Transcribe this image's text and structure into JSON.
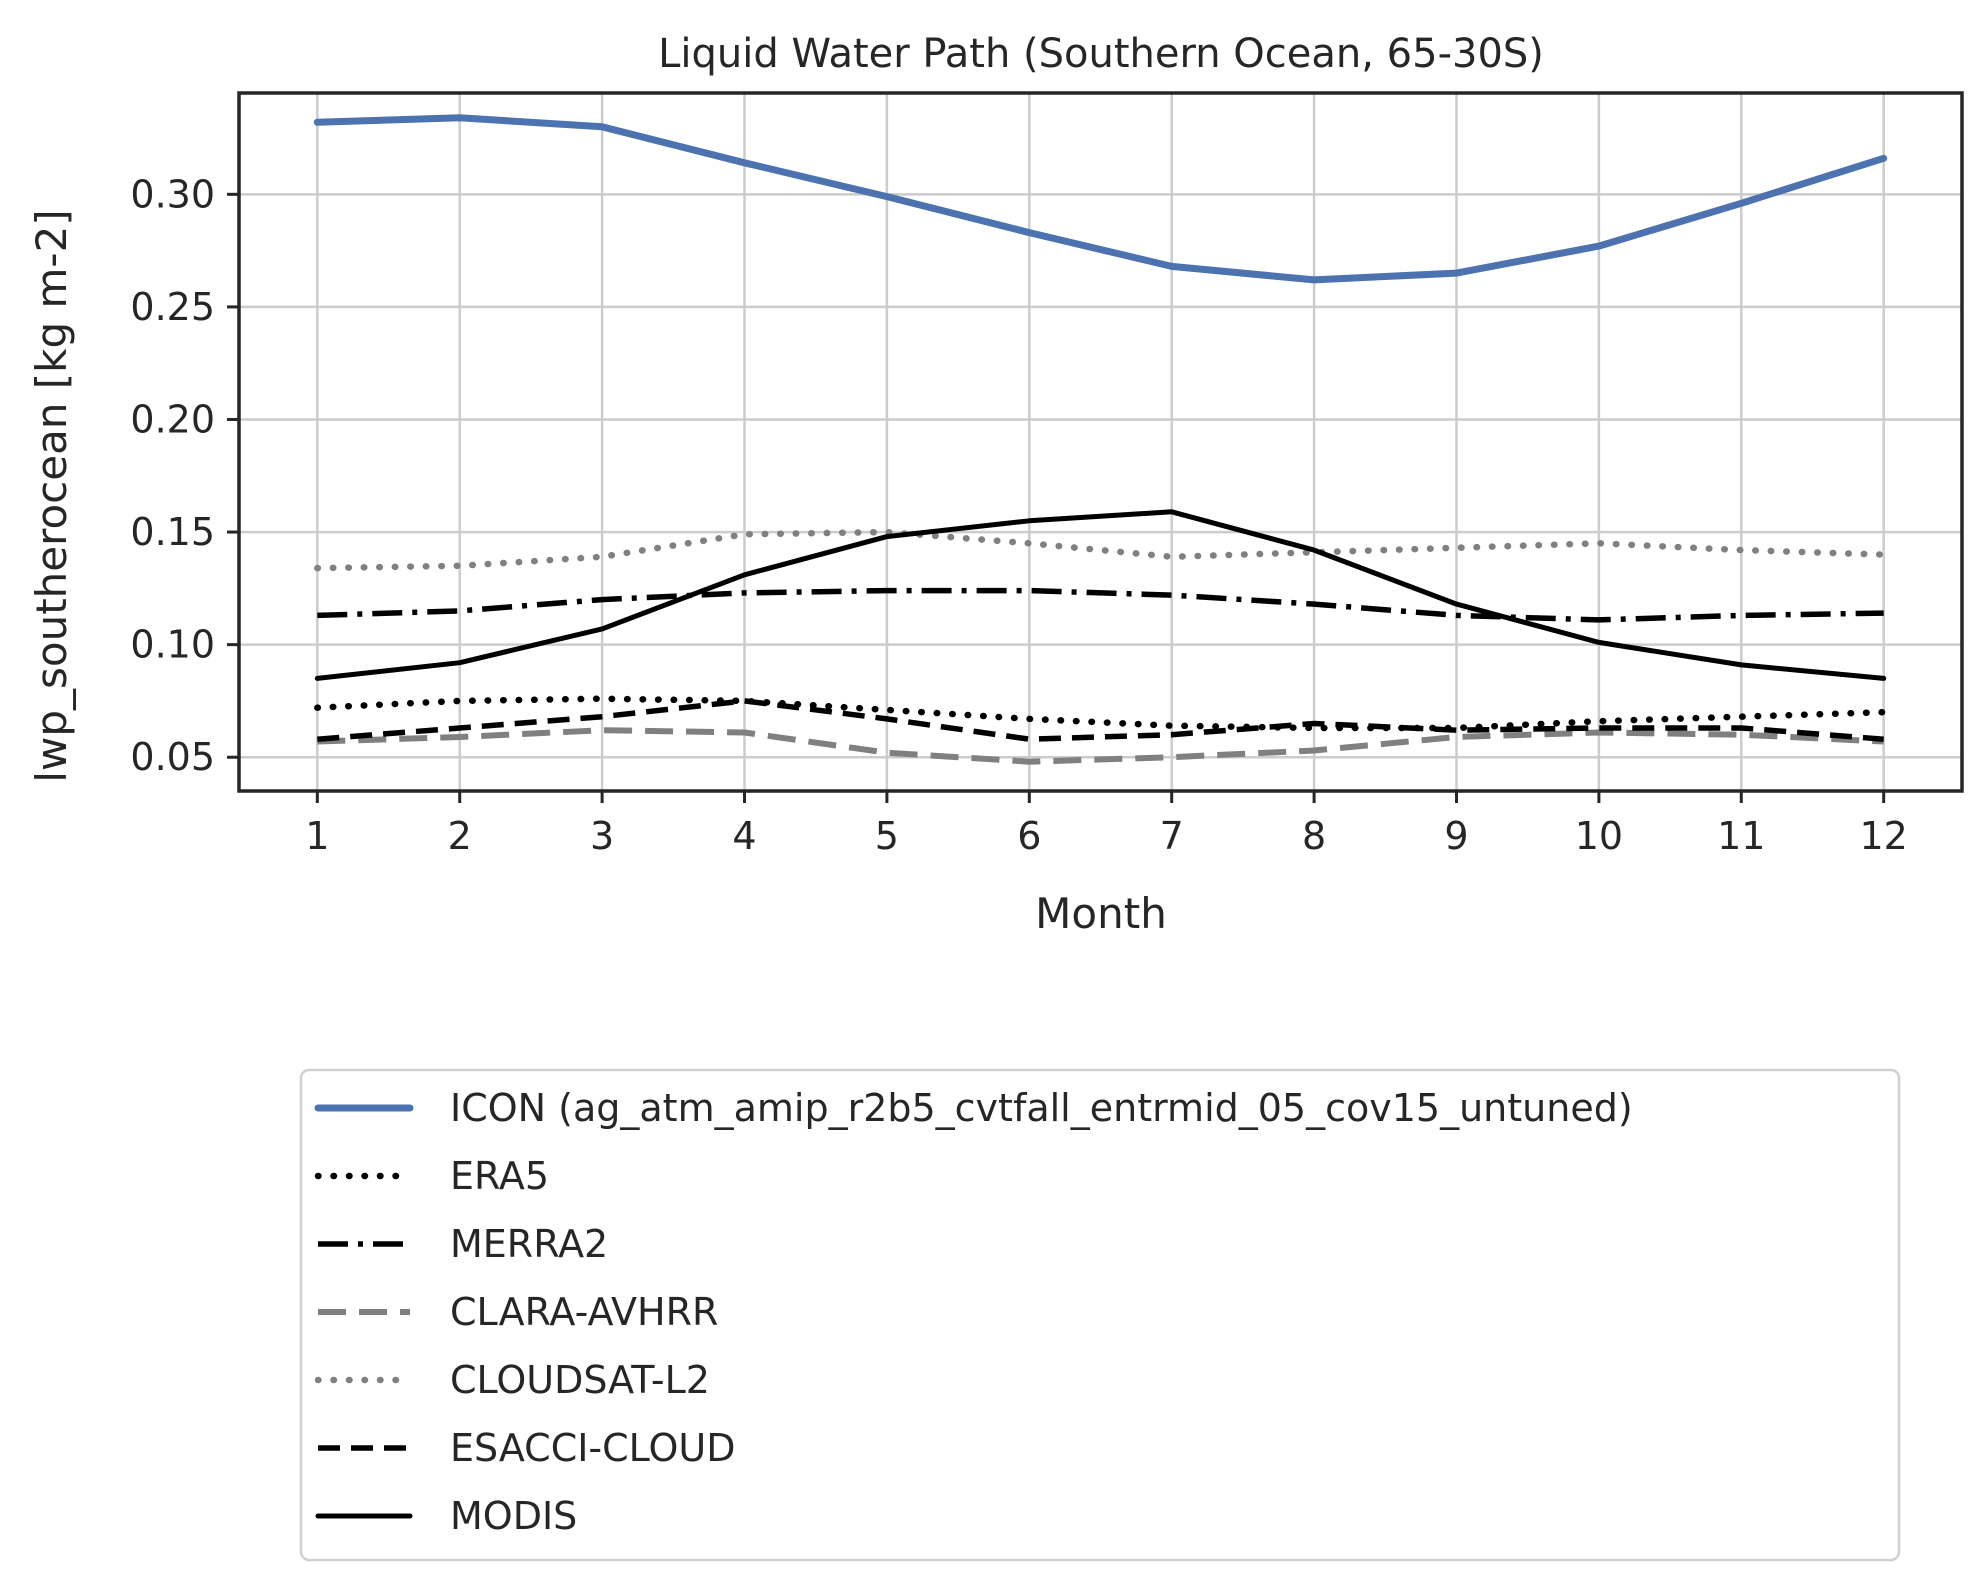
{
  "chart_data": {
    "type": "line",
    "title": "Liquid Water Path (Southern Ocean, 65-30S)",
    "xlabel": "Month",
    "ylabel": "lwp_southerocean [kg m-2]",
    "x": [
      1,
      2,
      3,
      4,
      5,
      6,
      7,
      8,
      9,
      10,
      11,
      12
    ],
    "xlim": [
      0.45,
      12.55
    ],
    "ylim": [
      0.035,
      0.345
    ],
    "xticks": [
      "1",
      "2",
      "3",
      "4",
      "5",
      "6",
      "7",
      "8",
      "9",
      "10",
      "11",
      "12"
    ],
    "yticks": [
      "0.05",
      "0.10",
      "0.15",
      "0.20",
      "0.25",
      "0.30"
    ],
    "grid": true,
    "legend_position": "below-center",
    "series": [
      {
        "name": "ICON (ag_atm_amip_r2b5_cvtfall_entrmid_05_cov15_untuned)",
        "color": "#4c72b0",
        "style": "solid-thick",
        "values": [
          0.332,
          0.334,
          0.33,
          0.314,
          0.299,
          0.283,
          0.268,
          0.262,
          0.265,
          0.277,
          0.296,
          0.316
        ]
      },
      {
        "name": "ERA5",
        "color": "#000000",
        "style": "dotted",
        "values": [
          0.072,
          0.075,
          0.076,
          0.075,
          0.071,
          0.067,
          0.064,
          0.063,
          0.063,
          0.066,
          0.068,
          0.07
        ]
      },
      {
        "name": "MERRA2",
        "color": "#000000",
        "style": "dashdot",
        "values": [
          0.113,
          0.115,
          0.12,
          0.123,
          0.124,
          0.124,
          0.122,
          0.118,
          0.113,
          0.111,
          0.113,
          0.114
        ]
      },
      {
        "name": "CLARA-AVHRR",
        "color": "#808080",
        "style": "dashed-long",
        "values": [
          0.057,
          0.059,
          0.062,
          0.061,
          0.052,
          0.048,
          0.05,
          0.053,
          0.059,
          0.061,
          0.06,
          0.057
        ]
      },
      {
        "name": "CLOUDSAT-L2",
        "color": "#808080",
        "style": "dotted",
        "values": [
          0.134,
          0.135,
          0.139,
          0.149,
          0.15,
          0.145,
          0.139,
          0.141,
          0.143,
          0.145,
          0.142,
          0.14
        ]
      },
      {
        "name": "ESACCI-CLOUD",
        "color": "#000000",
        "style": "dashed",
        "values": [
          0.058,
          0.063,
          0.068,
          0.075,
          0.067,
          0.058,
          0.06,
          0.065,
          0.062,
          0.063,
          0.063,
          0.058
        ]
      },
      {
        "name": "MODIS",
        "color": "#000000",
        "style": "solid",
        "values": [
          0.085,
          0.092,
          0.107,
          0.131,
          0.148,
          0.155,
          0.159,
          0.142,
          0.118,
          0.101,
          0.091,
          0.085
        ]
      }
    ]
  }
}
